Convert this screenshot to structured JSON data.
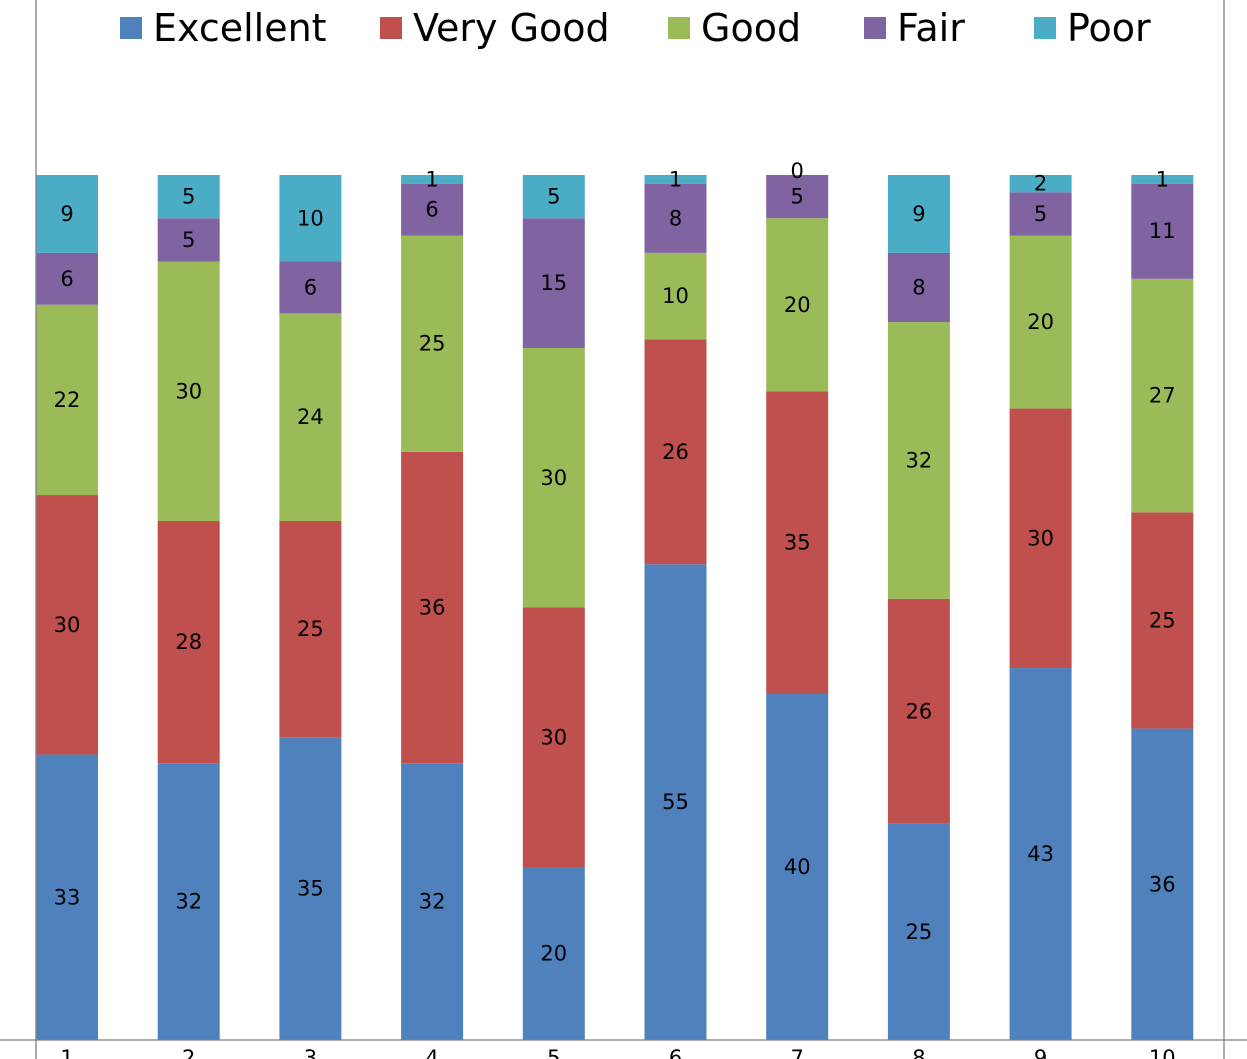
{
  "chart_data": {
    "type": "bar",
    "stacked": true,
    "normalized_percent": true,
    "categories": [
      "1",
      "2",
      "3",
      "4",
      "5",
      "6",
      "7",
      "8",
      "9",
      "10"
    ],
    "series": [
      {
        "name": "Excellent",
        "color": "#4F81BD",
        "values": [
          33,
          32,
          35,
          32,
          20,
          55,
          40,
          25,
          43,
          36
        ]
      },
      {
        "name": "Very Good",
        "color": "#C0504D",
        "values": [
          30,
          28,
          25,
          36,
          30,
          26,
          35,
          26,
          30,
          25
        ]
      },
      {
        "name": "Good",
        "color": "#9BBB59",
        "values": [
          22,
          30,
          24,
          25,
          30,
          10,
          20,
          32,
          20,
          27
        ]
      },
      {
        "name": "Fair",
        "color": "#8064A2",
        "values": [
          6,
          5,
          6,
          6,
          15,
          8,
          5,
          8,
          5,
          11
        ]
      },
      {
        "name": "Poor",
        "color": "#4BACC6",
        "values": [
          9,
          5,
          10,
          1,
          5,
          1,
          0,
          9,
          2,
          1
        ]
      }
    ],
    "legend_position": "top",
    "grid": false,
    "title": "",
    "xlabel": "",
    "ylabel": ""
  }
}
